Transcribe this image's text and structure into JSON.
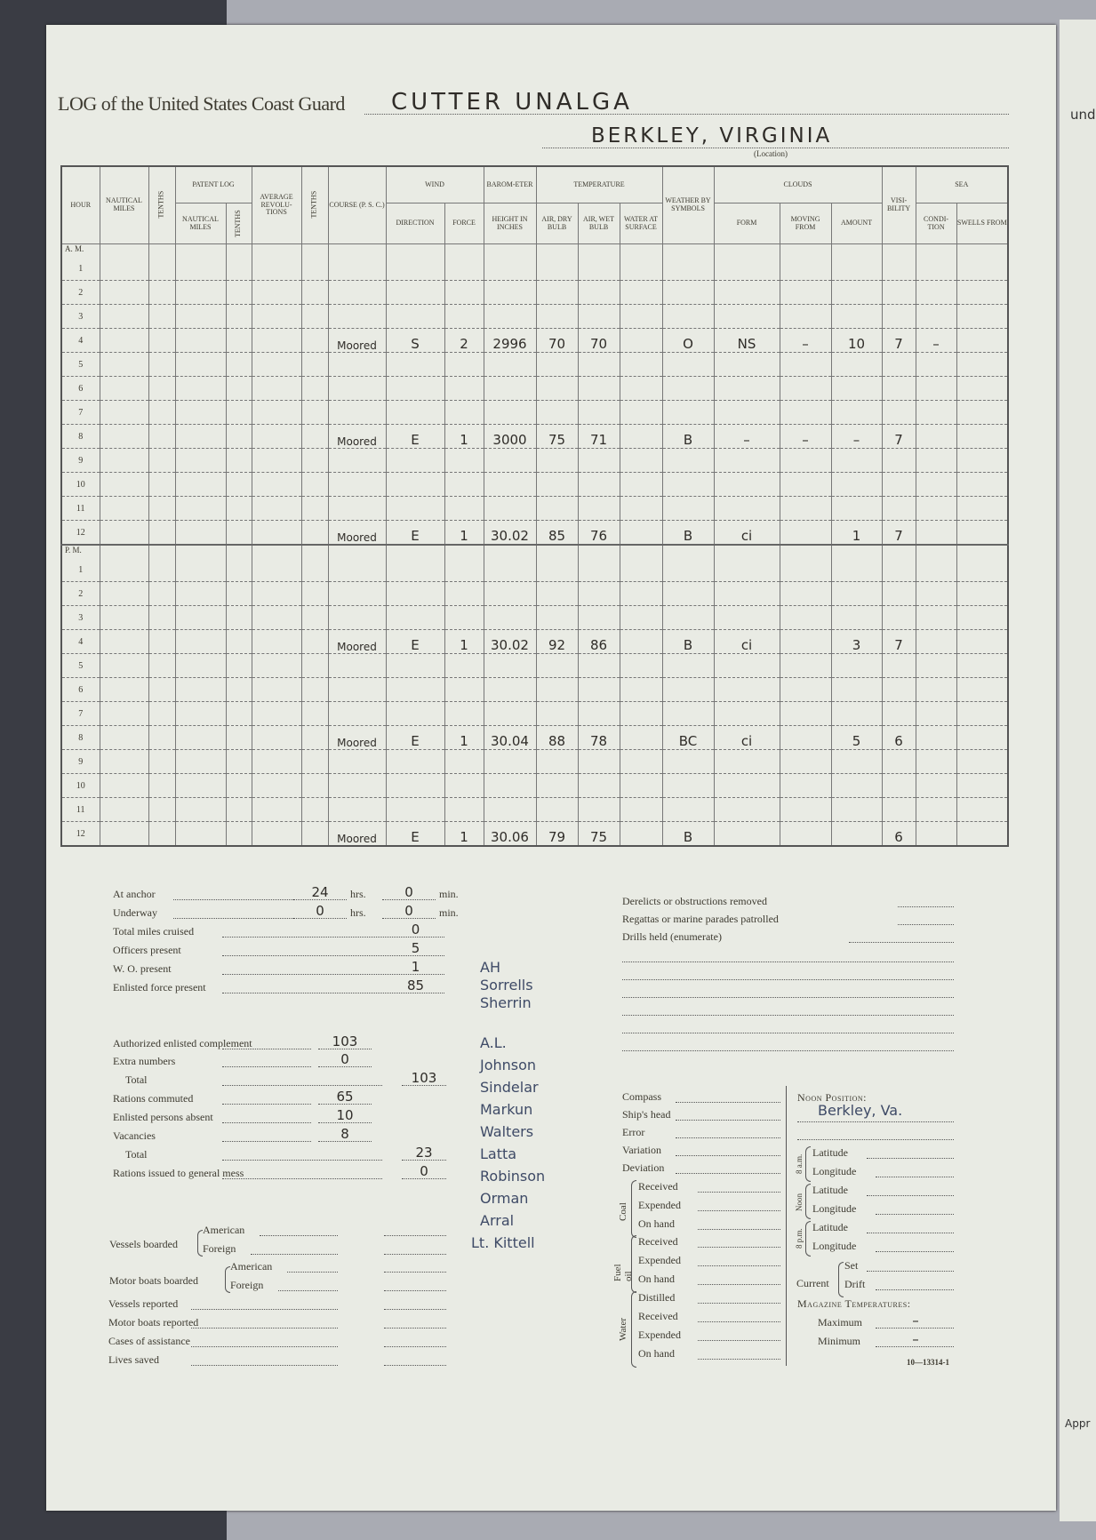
{
  "header": {
    "title": "LOG of the United States Coast Guard",
    "vessel": "CUTTER UNALGA",
    "location": "BERKLEY, VIRGINIA",
    "location_label": "(Location)"
  },
  "table": {
    "groups": {
      "patent_log": "Patent Log",
      "wind": "Wind",
      "barometer": "Barom-eter",
      "temperature": "Temperature",
      "clouds": "Clouds",
      "sea": "Sea"
    },
    "columns": {
      "hour": "Hour",
      "nautical_miles": "Nautical Miles",
      "tenths": "Tenths",
      "pl_nautical_miles": "Nautical Miles",
      "pl_tenths": "Tenths",
      "avg_rev": "Average Revolu-tions",
      "tenths2": "Tenths",
      "course": "Course (P. S. C.)",
      "direction": "Direction",
      "force": "Force",
      "height": "Height in Inches",
      "dry": "Air, Dry Bulb",
      "wet": "Air, Wet Bulb",
      "water": "Water at Surface",
      "weather": "Weather by Symbols",
      "form": "Form",
      "moving": "Moving From",
      "amount": "Amount",
      "visibility": "Visi-bility",
      "condition": "Condi-tion",
      "swells": "Swells From"
    },
    "am_label": "A. M.",
    "pm_label": "P. M.",
    "am": [
      {
        "hour": "1"
      },
      {
        "hour": "2"
      },
      {
        "hour": "3"
      },
      {
        "hour": "4",
        "course": "Moored",
        "direction": "S",
        "force": "2",
        "height": "2996",
        "dry": "70",
        "wet": "70",
        "weather": "O",
        "form": "NS",
        "moving": "–",
        "amount": "10",
        "visibility": "7",
        "condition": "–"
      },
      {
        "hour": "5"
      },
      {
        "hour": "6"
      },
      {
        "hour": "7"
      },
      {
        "hour": "8",
        "course": "Moored",
        "direction": "E",
        "force": "1",
        "height": "3000",
        "dry": "75",
        "wet": "71",
        "weather": "B",
        "form": "–",
        "moving": "–",
        "amount": "–",
        "visibility": "7"
      },
      {
        "hour": "9"
      },
      {
        "hour": "10"
      },
      {
        "hour": "11"
      },
      {
        "hour": "12",
        "course": "Moored",
        "direction": "E",
        "force": "1",
        "height": "30.02",
        "dry": "85",
        "wet": "76",
        "weather": "B",
        "form": "ci",
        "amount": "1",
        "visibility": "7"
      }
    ],
    "pm": [
      {
        "hour": "1"
      },
      {
        "hour": "2"
      },
      {
        "hour": "3"
      },
      {
        "hour": "4",
        "course": "Moored",
        "direction": "E",
        "force": "1",
        "height": "30.02",
        "dry": "92",
        "wet": "86",
        "weather": "B",
        "form": "ci",
        "amount": "3",
        "visibility": "7"
      },
      {
        "hour": "5"
      },
      {
        "hour": "6"
      },
      {
        "hour": "7"
      },
      {
        "hour": "8",
        "course": "Moored",
        "direction": "E",
        "force": "1",
        "height": "30.04",
        "dry": "88",
        "wet": "78",
        "weather": "BC",
        "form": "ci",
        "amount": "5",
        "visibility": "6"
      },
      {
        "hour": "9"
      },
      {
        "hour": "10"
      },
      {
        "hour": "11"
      },
      {
        "hour": "12",
        "course": "Moored",
        "direction": "E",
        "force": "1",
        "height": "30.06",
        "dry": "79",
        "wet": "75",
        "weather": "B",
        "visibility": "6"
      }
    ]
  },
  "summary": {
    "hrs": "hrs.",
    "min": "min.",
    "at_anchor": {
      "label": "At anchor",
      "hrs": "24",
      "min": "0"
    },
    "underway": {
      "label": "Underway",
      "hrs": "0",
      "min": "0"
    },
    "total_miles": {
      "label": "Total miles cruised",
      "value": "0"
    },
    "officers": {
      "label": "Officers present",
      "value": "5"
    },
    "wo": {
      "label": "W. O. present",
      "value": "1"
    },
    "enlisted": {
      "label": "Enlisted force present",
      "value": "85"
    },
    "authorized": {
      "label": "Authorized enlisted complement",
      "value": "103"
    },
    "extra": {
      "label": "Extra numbers",
      "value": "0"
    },
    "total1": {
      "label": "Total",
      "value": "103"
    },
    "rations_commuted": {
      "label": "Rations commuted",
      "value": "65"
    },
    "absent": {
      "label": "Enlisted persons absent",
      "value": "10"
    },
    "vacancies": {
      "label": "Vacancies",
      "value": "8"
    },
    "total2": {
      "label": "Total",
      "value": "23"
    },
    "rations_issued": {
      "label": "Rations issued to general mess",
      "value": "0"
    },
    "vessels_boarded": "Vessels boarded",
    "motor_boats_boarded": "Motor boats boarded",
    "american": "American",
    "foreign": "Foreign",
    "vessels_reported": "Vessels reported",
    "motor_reported": "Motor boats reported",
    "cases": "Cases of assistance",
    "lives": "Lives saved"
  },
  "names": [
    "AH",
    "Sorrells",
    "Sherrin",
    "A.L.",
    "Johnson",
    "Sindelar",
    "Markun",
    "Walters",
    "Latta",
    "Robinson",
    "Orman",
    "Arral",
    "Lt. Kittell"
  ],
  "right": {
    "derelicts": "Derelicts or obstructions removed",
    "regattas": "Regattas or marine parades patrolled",
    "drills": "Drills held (enumerate)",
    "compass": "Compass",
    "ships_head": "Ship's head",
    "error": "Error",
    "variation": "Variation",
    "deviation": "Deviation",
    "coal": "Coal",
    "fuel_oil": "Fuel oil",
    "water": "Water",
    "received": "Received",
    "expended": "Expended",
    "on_hand": "On hand",
    "distilled": "Distilled",
    "noon_position": "Noon Position:",
    "noon_value": "Berkley, Va.",
    "am8": "8 a.m.",
    "noon": "Noon",
    "pm8": "8 p.m.",
    "latitude": "Latitude",
    "longitude": "Longitude",
    "current": "Current",
    "set": "Set",
    "drift": "Drift",
    "magazine": "Magazine Temperatures:",
    "maximum": "Maximum",
    "minimum": "Minimum",
    "max_value": "–",
    "min_value": "–",
    "form_number": "10—13314-1"
  },
  "adjacent_page": {
    "line1": "und",
    "line2": "Appr"
  }
}
